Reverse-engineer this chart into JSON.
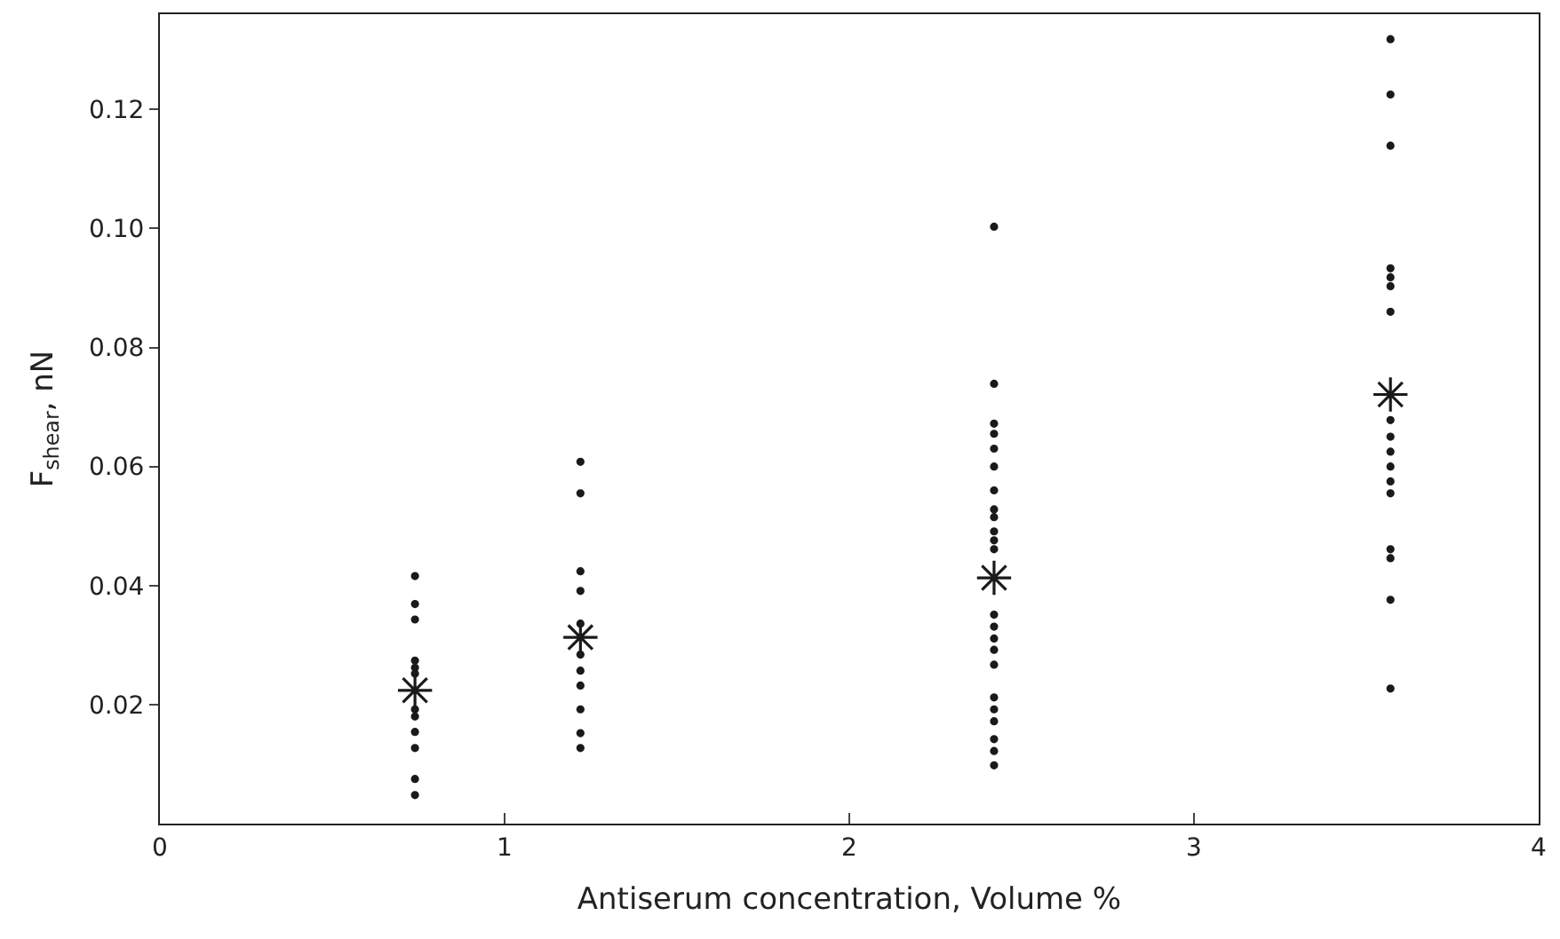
{
  "chart_data": {
    "type": "scatter",
    "xlabel": "Antiserum concentration, Volume %",
    "ylabel": "F$_{shear}$, nN",
    "xlim": [
      0,
      4
    ],
    "xticks": [
      0,
      1,
      2,
      3,
      4
    ],
    "ylim": [
      0,
      0.136
    ],
    "yticks": [
      0.02,
      0.04,
      0.06,
      0.08,
      {
        "value": 0.1,
        "label": "0.10"
      },
      0.12
    ],
    "series": [
      {
        "color": "#1a1a1a",
        "marker": "circle",
        "x": [
          0.74,
          0.74,
          0.74,
          0.74,
          0.74,
          0.74,
          0.74,
          0.74,
          0.74,
          0.74,
          0.74,
          0.74,
          1.22,
          1.22,
          1.22,
          1.22,
          1.22,
          1.22,
          1.22,
          1.22,
          1.22,
          1.22,
          1.22,
          2.42,
          2.42,
          2.42,
          2.42,
          2.42,
          2.42,
          2.42,
          2.42,
          2.42,
          2.42,
          2.42,
          2.42,
          2.42,
          2.42,
          2.42,
          2.42,
          2.42,
          2.42,
          2.42,
          2.42,
          2.42,
          2.42,
          2.42,
          3.57,
          3.57,
          3.57,
          3.57,
          3.57,
          3.57,
          3.57,
          3.57,
          3.57,
          3.57,
          3.57,
          3.57,
          3.57,
          3.57,
          3.57,
          3.57,
          3.57
        ],
        "values": [
          0.0416,
          0.0369,
          0.0343,
          0.0274,
          0.0262,
          0.0252,
          0.0192,
          0.018,
          0.0154,
          0.0127,
          0.0075,
          0.0048,
          0.0608,
          0.0555,
          0.0424,
          0.0391,
          0.0336,
          0.0284,
          0.0257,
          0.0232,
          0.0192,
          0.0152,
          0.0127,
          0.1003,
          0.0739,
          0.0672,
          0.0655,
          0.063,
          0.06,
          0.056,
          0.0528,
          0.0515,
          0.0491,
          0.0476,
          0.0461,
          0.0351,
          0.0331,
          0.0311,
          0.0292,
          0.0267,
          0.0212,
          0.0192,
          0.0172,
          0.0142,
          0.0122,
          0.0098,
          0.1318,
          0.1225,
          0.1139,
          0.0933,
          0.0918,
          0.0903,
          0.086,
          0.0678,
          0.065,
          0.0625,
          0.06,
          0.0575,
          0.0555,
          0.0461,
          0.0446,
          0.0376,
          0.0227
        ]
      },
      {
        "color": "#1a1a1a",
        "marker": "cross",
        "x": [
          0.74,
          1.22,
          2.42,
          3.57
        ],
        "values": [
          0.0224,
          0.0313,
          0.0413,
          0.0721
        ]
      }
    ]
  }
}
